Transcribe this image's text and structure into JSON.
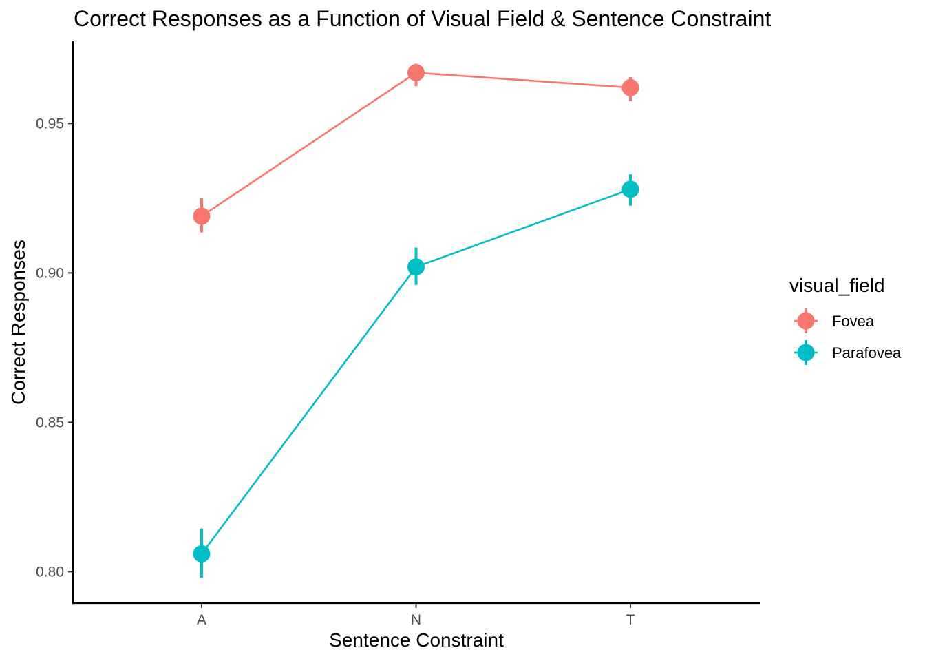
{
  "chart_data": {
    "type": "line",
    "title": "Correct Responses as a Function of Visual Field & Sentence Constraint",
    "xlabel": "Sentence Constraint",
    "ylabel": "Correct Responses",
    "categories": [
      "A",
      "N",
      "T"
    ],
    "ylim": [
      0.7895,
      0.9775
    ],
    "yticks": [
      0.8,
      0.85,
      0.9,
      0.95
    ],
    "ytick_labels": [
      "0.80",
      "0.85",
      "0.90",
      "0.95"
    ],
    "legend": {
      "title": "visual_field",
      "position": "right"
    },
    "grid": false,
    "series": [
      {
        "name": "Fovea",
        "color": "#F8766D",
        "values": [
          0.919,
          0.967,
          0.962
        ],
        "error_low": [
          0.9135,
          0.9625,
          0.9575
        ],
        "error_high": [
          0.925,
          0.97,
          0.9655
        ]
      },
      {
        "name": "Parafovea",
        "color": "#00BFC4",
        "values": [
          0.806,
          0.902,
          0.928
        ],
        "error_low": [
          0.798,
          0.896,
          0.9225
        ],
        "error_high": [
          0.8145,
          0.9085,
          0.933
        ]
      }
    ]
  }
}
